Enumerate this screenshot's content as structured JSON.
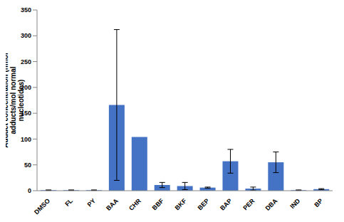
{
  "chart_data": {
    "type": "bar",
    "ylabel": "Adduct concentration (nmol adducts/mol normal nucleotides)",
    "categories": [
      "DMSO",
      "FL",
      "PY",
      "BAA",
      "CHR",
      "BBF",
      "BKF",
      "BEP",
      "BAP",
      "PER",
      "DBA",
      "IND",
      "BP"
    ],
    "values": [
      1,
      1,
      1,
      166,
      104,
      11,
      9,
      6,
      57,
      4,
      55,
      1,
      3
    ],
    "errors": [
      0.5,
      0.5,
      0.5,
      146,
      0,
      5,
      7,
      1,
      23,
      3,
      20,
      0.5,
      1
    ],
    "color": "#4472c4",
    "ylim": [
      0,
      350
    ],
    "yticks": [
      0,
      50,
      100,
      150,
      200,
      250,
      300,
      350
    ],
    "grid": false
  }
}
